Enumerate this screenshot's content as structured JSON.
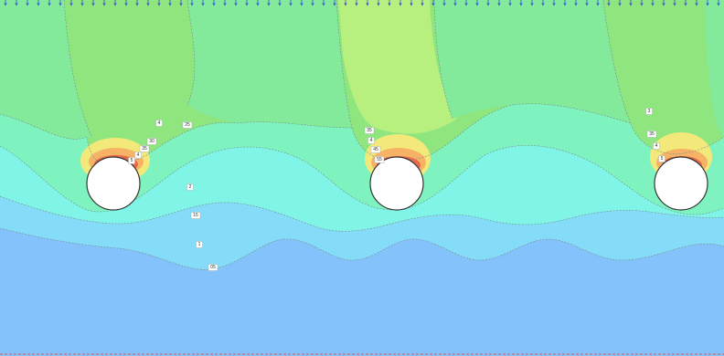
{
  "colors": {
    "band_top": "#8fe57e",
    "band_top_light": "#b7f07f",
    "band_mid_green": "#82ea9a",
    "band_mint": "#7ff3bf",
    "band_cyan": "#7ff4e7",
    "band_sky": "#84dcf8",
    "band_blue": "#84c2fc",
    "hot_yellow": "#f2e97a",
    "hot_orange": "#f6b366",
    "hot_red": "#e8684a",
    "contour_line": "#7a8f8a",
    "surface_load_arrow": "#3b4fd6",
    "base_line": "#e05a5a",
    "tunnel_fill": "#ffffff",
    "tunnel_outline": "#333333"
  },
  "surface_load": {
    "icon": "downward-arrow-icon",
    "count": 66
  },
  "contour_labels": [
    {
      "id": "left-a",
      "text": "4"
    },
    {
      "id": "left-b",
      "text": "25"
    },
    {
      "id": "left-c",
      "text": "30"
    },
    {
      "id": "left-d",
      "text": "35"
    },
    {
      "id": "left-e",
      "text": "4"
    },
    {
      "id": "left-f",
      "text": "5"
    },
    {
      "id": "left-g",
      "text": "2"
    },
    {
      "id": "left-h",
      "text": "15"
    },
    {
      "id": "left-i",
      "text": "1"
    },
    {
      "id": "left-j",
      "text": "05"
    },
    {
      "id": "mid-a",
      "text": "35"
    },
    {
      "id": "mid-b",
      "text": "4"
    },
    {
      "id": "mid-c",
      "text": "45"
    },
    {
      "id": "mid-d",
      "text": "55"
    },
    {
      "id": "right-a",
      "text": "3"
    },
    {
      "id": "right-b",
      "text": "35"
    },
    {
      "id": "right-c",
      "text": "4"
    },
    {
      "id": "right-d",
      "text": "5"
    }
  ],
  "tunnels": [
    {
      "id": "tunnel-left"
    },
    {
      "id": "tunnel-middle"
    },
    {
      "id": "tunnel-right"
    }
  ]
}
